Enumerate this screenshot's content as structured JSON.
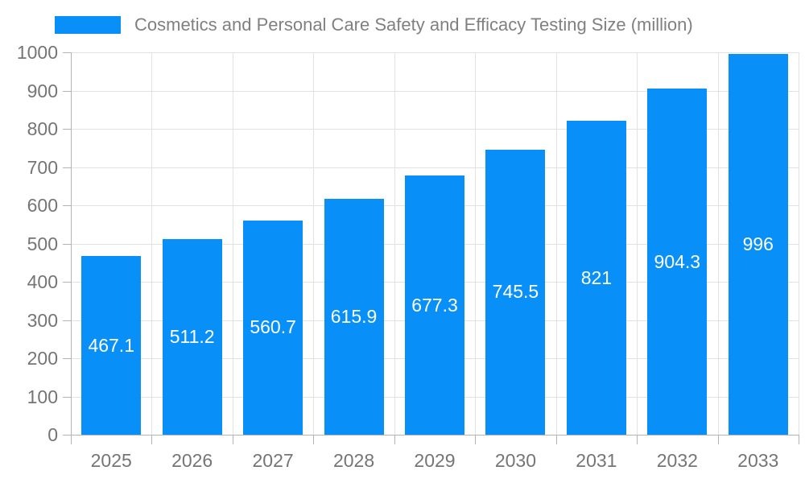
{
  "legend": {
    "label": "Cosmetics and Personal Care Safety and Efficacy Testing Size (million)"
  },
  "chart_data": {
    "type": "bar",
    "title": "Cosmetics and Personal Care Safety and Efficacy Testing Size (million)",
    "series_name": "Cosmetics and Personal Care Safety and Efficacy Testing Size (million)",
    "categories": [
      "2025",
      "2026",
      "2027",
      "2028",
      "2029",
      "2030",
      "2031",
      "2032",
      "2033"
    ],
    "values": [
      467.1,
      511.2,
      560.7,
      615.9,
      677.3,
      745.5,
      821,
      904.3,
      996
    ],
    "value_labels": [
      "467.1",
      "511.2",
      "560.7",
      "615.9",
      "677.3",
      "745.5",
      "821",
      "904.3",
      "996"
    ],
    "xlabel": "",
    "ylabel": "",
    "ylim": [
      0,
      1000
    ],
    "ytick_step": 100,
    "ytick_labels": [
      "0",
      "100",
      "200",
      "300",
      "400",
      "500",
      "600",
      "700",
      "800",
      "900",
      "1000"
    ],
    "grid": true,
    "legend_position": "top-left",
    "colors": {
      "bar": "#0990F8",
      "grid": "#e2e2e2",
      "axis": "#b3b3b3",
      "tick_text": "#757575",
      "legend_text": "#808080",
      "value_label": "#ffffff",
      "background": "#ffffff"
    }
  }
}
